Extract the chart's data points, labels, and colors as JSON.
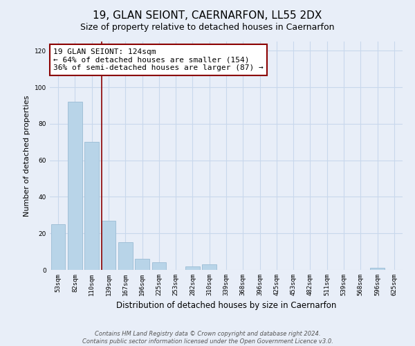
{
  "title": "19, GLAN SEIONT, CAERNARFON, LL55 2DX",
  "subtitle": "Size of property relative to detached houses in Caernarfon",
  "xlabel": "Distribution of detached houses by size in Caernarfon",
  "ylabel": "Number of detached properties",
  "bar_labels": [
    "53sqm",
    "82sqm",
    "110sqm",
    "139sqm",
    "167sqm",
    "196sqm",
    "225sqm",
    "253sqm",
    "282sqm",
    "310sqm",
    "339sqm",
    "368sqm",
    "396sqm",
    "425sqm",
    "453sqm",
    "482sqm",
    "511sqm",
    "539sqm",
    "568sqm",
    "596sqm",
    "625sqm"
  ],
  "bar_values": [
    25,
    92,
    70,
    27,
    15,
    6,
    4,
    0,
    2,
    3,
    0,
    0,
    0,
    0,
    0,
    0,
    0,
    0,
    0,
    1,
    0
  ],
  "bar_color": "#b8d4e8",
  "bar_edge_color": "#9abcd4",
  "ylim": [
    0,
    125
  ],
  "yticks": [
    0,
    20,
    40,
    60,
    80,
    100,
    120
  ],
  "annotation_line1": "19 GLAN SEIONT: 124sqm",
  "annotation_line2": "← 64% of detached houses are smaller (154)",
  "annotation_line3": "36% of semi-detached houses are larger (87) →",
  "vline_x_index": 2.58,
  "vline_color": "#8b0000",
  "annotation_box_color": "#ffffff",
  "annotation_box_edge": "#8b0000",
  "footer_line1": "Contains HM Land Registry data © Crown copyright and database right 2024.",
  "footer_line2": "Contains public sector information licensed under the Open Government Licence v3.0.",
  "grid_color": "#c8d8ec",
  "background_color": "#e8eef8",
  "title_fontsize": 11,
  "subtitle_fontsize": 9
}
